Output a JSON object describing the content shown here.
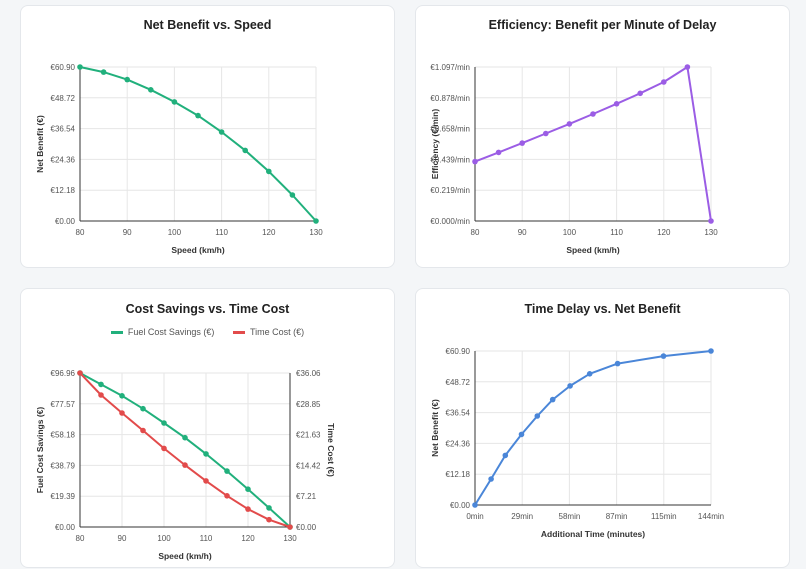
{
  "chart_data": [
    {
      "type": "line",
      "title": "Net Benefit vs. Speed",
      "xlabel": "Speed (km/h)",
      "ylabel": "Net Benefit (€)",
      "x": [
        80,
        85,
        90,
        95,
        100,
        105,
        110,
        115,
        120,
        125,
        130
      ],
      "xticks": [
        80,
        90,
        100,
        110,
        120,
        130
      ],
      "xlim": [
        80,
        130
      ],
      "ylim": [
        0,
        60.9
      ],
      "yticks": [
        "€0.00",
        "€12.18",
        "€24.36",
        "€36.54",
        "€48.72",
        "€60.90"
      ],
      "series": [
        {
          "values": [
            60.9,
            58.9,
            55.9,
            51.9,
            47.1,
            41.7,
            35.2,
            27.9,
            19.6,
            10.3,
            0
          ],
          "color": "#21b07c"
        }
      ],
      "grid": true
    },
    {
      "type": "line",
      "title": "Efficiency: Benefit per Minute of Delay",
      "xlabel": "Speed (km/h)",
      "ylabel": "Efficiency (€/min)",
      "x": [
        80,
        85,
        90,
        95,
        100,
        105,
        110,
        115,
        120,
        125,
        130
      ],
      "xticks": [
        80,
        90,
        100,
        110,
        120,
        130
      ],
      "xlim": [
        80,
        130
      ],
      "ylim": [
        0,
        1.097
      ],
      "yticks": [
        "€0.000/min",
        "€0.219/min",
        "€0.439/min",
        "€0.658/min",
        "€0.878/min",
        "€1.097/min"
      ],
      "series": [
        {
          "values": [
            0.423,
            0.489,
            0.555,
            0.623,
            0.692,
            0.762,
            0.835,
            0.91,
            0.99,
            1.097,
            0
          ],
          "color": "#9b5de5"
        }
      ],
      "grid": true
    },
    {
      "type": "line",
      "title": "Cost Savings vs. Time Cost",
      "xlabel": "Speed (km/h)",
      "ylabel": "Fuel Cost Savings (€)",
      "y2label": "Time Cost (€)",
      "x": [
        80,
        85,
        90,
        95,
        100,
        105,
        110,
        115,
        120,
        125,
        130
      ],
      "xticks": [
        80,
        90,
        100,
        110,
        120,
        130
      ],
      "xlim": [
        80,
        130
      ],
      "ylim": [
        0,
        96.96
      ],
      "y2lim": [
        0,
        36.06
      ],
      "yticks": [
        "€0.00",
        "€19.39",
        "€38.79",
        "€58.18",
        "€77.57",
        "€96.96"
      ],
      "y2ticks": [
        "€0.00",
        "€7.21",
        "€14.42",
        "€21.63",
        "€28.85",
        "€36.06"
      ],
      "legend": "top",
      "series": [
        {
          "name": "Fuel Cost Savings (€)",
          "axis": "left",
          "values": [
            96.96,
            89.8,
            82.6,
            74.5,
            65.5,
            56.2,
            46.0,
            35.2,
            23.8,
            12.0,
            0
          ],
          "color": "#21b07c"
        },
        {
          "name": "Time Cost (€)",
          "axis": "right",
          "values": [
            36.06,
            30.9,
            26.7,
            22.6,
            18.4,
            14.5,
            10.8,
            7.3,
            4.2,
            1.7,
            0
          ],
          "color": "#e24b4b"
        }
      ],
      "grid": true
    },
    {
      "type": "line",
      "title": "Time Delay vs. Net Benefit",
      "xlabel": "Additional Time (minutes)",
      "ylabel": "Net Benefit (€)",
      "x": [
        0,
        9.8,
        18.5,
        28.4,
        38.0,
        47.4,
        58.0,
        70.0,
        87.0,
        115.0,
        144.0
      ],
      "xlim": [
        0,
        144
      ],
      "xticks": [
        "0min",
        "29min",
        "58min",
        "87min",
        "115min",
        "144min"
      ],
      "ylim": [
        0,
        60.9
      ],
      "yticks": [
        "€0.00",
        "€12.18",
        "€24.36",
        "€36.54",
        "€48.72",
        "€60.90"
      ],
      "series": [
        {
          "values": [
            0,
            10.3,
            19.6,
            27.9,
            35.2,
            41.7,
            47.1,
            51.9,
            55.9,
            58.9,
            60.9
          ],
          "color": "#4a86d8"
        }
      ],
      "grid": true
    }
  ]
}
